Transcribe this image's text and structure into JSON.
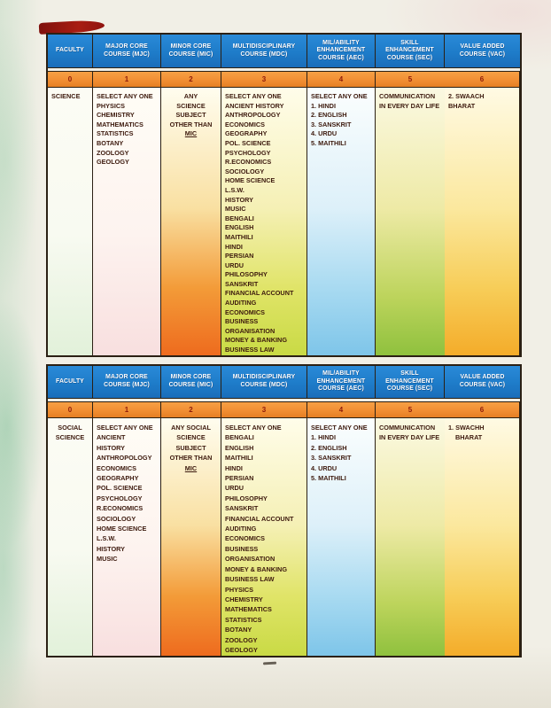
{
  "colors": {
    "vars": {
      "paper": "#f1efe6",
      "line": "#2b2014",
      "ink": "#3d1a0e",
      "header-blue": "#1e7cc9",
      "header-text": "#ffffff",
      "band-orange": "#f29035",
      "number-red": "#8e1a08"
    },
    "column_bottoms": [
      "#e2f1da",
      "#f8dfdf",
      "#ee6b1e",
      "#c9da45",
      "#7ec5e9",
      "#8fc13e",
      "#f4ac2a"
    ]
  },
  "column_headers": [
    "FACULTY",
    "MAJOR CORE COURSE (MJC)",
    "MINOR CORE COURSE (MIC)",
    "MULTIDISCIPLINARY COURSE (MDC)",
    "MIL/ABILITY ENHANCEMENT COURSE (AEC)",
    "SKILL ENHANCEMENT COURSE (SEC)",
    "VALUE ADDED COURSE (VAC)"
  ],
  "band_numbers": [
    "0",
    "1",
    "2",
    "3",
    "4",
    "5",
    "6"
  ],
  "tables": [
    {
      "faculty": "SCIENCE",
      "columns": [
        [
          "SCIENCE"
        ],
        [
          "SELECT ANY ONE",
          "PHYSICS",
          "CHEMISTRY",
          "MATHEMATICS",
          "STATISTICS",
          "BOTANY",
          "ZOOLOGY",
          "GEOLOGY"
        ],
        [
          "ANY",
          "SCIENCE",
          "SUBJECT",
          "OTHER THAN",
          {
            "text": "MIC",
            "underline": true
          }
        ],
        [
          "SELECT ANY ONE",
          "ANCIENT HISTORY",
          "ANTHROPOLOGY",
          "ECONOMICS",
          "GEOGRAPHY",
          "POL. SCIENCE",
          "PSYCHOLOGY",
          "R.ECONOMICS",
          "SOCIOLOGY",
          "HOME SCIENCE",
          "L.S.W.",
          "HISTORY",
          "MUSIC",
          "BENGALI",
          "ENGLISH",
          "MAITHILI",
          "HINDI",
          "PERSIAN",
          "URDU",
          "PHILOSOPHY",
          "SANSKRIT",
          "FINANCIAL ACCOUNT",
          "AUDITING",
          "ECONOMICS",
          "BUSINESS",
          "ORGANISATION",
          "MONEY & BANKING",
          "BUSINESS LAW"
        ],
        [
          "SELECT ANY ONE",
          "1. HINDI",
          "2. ENGLISH",
          "3. SANSKRIT",
          "4. URDU",
          "5. MAITHILI"
        ],
        [
          "COMMUNICATION",
          "IN EVERY DAY LIFE"
        ],
        [
          "2. SWAACH",
          "BHARAT"
        ]
      ]
    },
    {
      "faculty": "SOCIAL SCIENCE",
      "columns": [
        [
          "SOCIAL",
          "SCIENCE"
        ],
        [
          "SELECT ANY ONE",
          "ANCIENT",
          "HISTORY",
          "ANTHROPOLOGY",
          "ECONOMICS",
          "GEOGRAPHY",
          "POL. SCIENCE",
          "PSYCHOLOGY",
          "R.ECONOMICS",
          "SOCIOLOGY",
          "HOME SCIENCE",
          "L.S.W.",
          "HISTORY",
          "MUSIC"
        ],
        [
          "ANY SOCIAL",
          "SCIENCE",
          "SUBJECT",
          "OTHER THAN",
          {
            "text": "MIC",
            "underline": true
          }
        ],
        [
          "SELECT ANY ONE",
          "BENGALI",
          "ENGLISH",
          "MAITHILI",
          "HINDI",
          "PERSIAN",
          "URDU",
          "PHILOSOPHY",
          "SANSKRIT",
          "FINANCIAL ACCOUNT",
          "AUDITING",
          "ECONOMICS",
          "BUSINESS",
          "ORGANISATION",
          "MONEY & BANKING",
          "BUSINESS LAW",
          "PHYSICS",
          "CHEMISTRY",
          "MATHEMATICS",
          "STATISTICS",
          "BOTANY",
          "ZOOLOGY",
          "GEOLOGY"
        ],
        [
          "SELECT ANY ONE",
          "1. HINDI",
          "2. ENGLISH",
          "3. SANSKRIT",
          "4. URDU",
          "5. MAITHILI"
        ],
        [
          "COMMUNICATION",
          "IN EVERY DAY LIFE"
        ],
        [
          "1. SWACHH",
          {
            "text": "BHARAT",
            "indent": true
          }
        ]
      ]
    }
  ]
}
